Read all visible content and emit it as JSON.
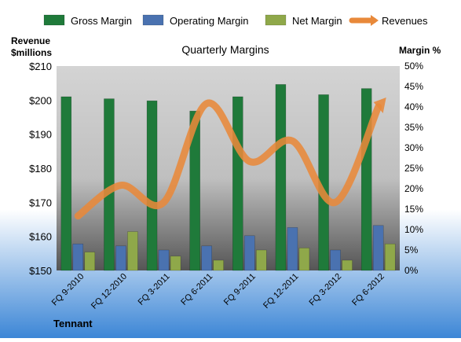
{
  "chart_data": {
    "type": "bar",
    "title": "Quarterly Margins",
    "categories": [
      "FQ 9-2010",
      "FQ 12-2010",
      "FQ 3-2011",
      "FQ 6-2011",
      "FQ 9-2011",
      "FQ 12-2011",
      "FQ 3-2012",
      "FQ 6-2012"
    ],
    "series": [
      {
        "name": "Gross Margin",
        "axis": "right",
        "unit": "%",
        "color": "#1f7a3a",
        "values": [
          42.5,
          42.0,
          41.5,
          39.0,
          42.5,
          45.5,
          43.0,
          44.5
        ]
      },
      {
        "name": "Operating Margin",
        "axis": "right",
        "unit": "%",
        "color": "#4a72b0",
        "values": [
          6.5,
          6.0,
          5.0,
          6.0,
          8.5,
          10.5,
          5.0,
          11.0
        ]
      },
      {
        "name": "Net Margin",
        "axis": "right",
        "unit": "%",
        "color": "#8fa84a",
        "values": [
          4.5,
          9.5,
          3.5,
          2.5,
          5.0,
          5.5,
          2.5,
          6.5
        ]
      },
      {
        "name": "Revenues",
        "type": "line",
        "axis": "left",
        "unit": "$millions",
        "color": "#e8893a",
        "values": [
          166,
          175,
          170,
          199,
          182,
          188,
          170,
          198
        ]
      }
    ],
    "y_left": {
      "label_line1": "Revenue",
      "label_line2": "$millions",
      "min": 150,
      "max": 210,
      "step": 10,
      "prefix": "$"
    },
    "y_right": {
      "label": "Margin %",
      "min": 0,
      "max": 50,
      "step": 5,
      "suffix": "%"
    },
    "footer": "Tennant",
    "legend_position": "top",
    "grid": false
  }
}
